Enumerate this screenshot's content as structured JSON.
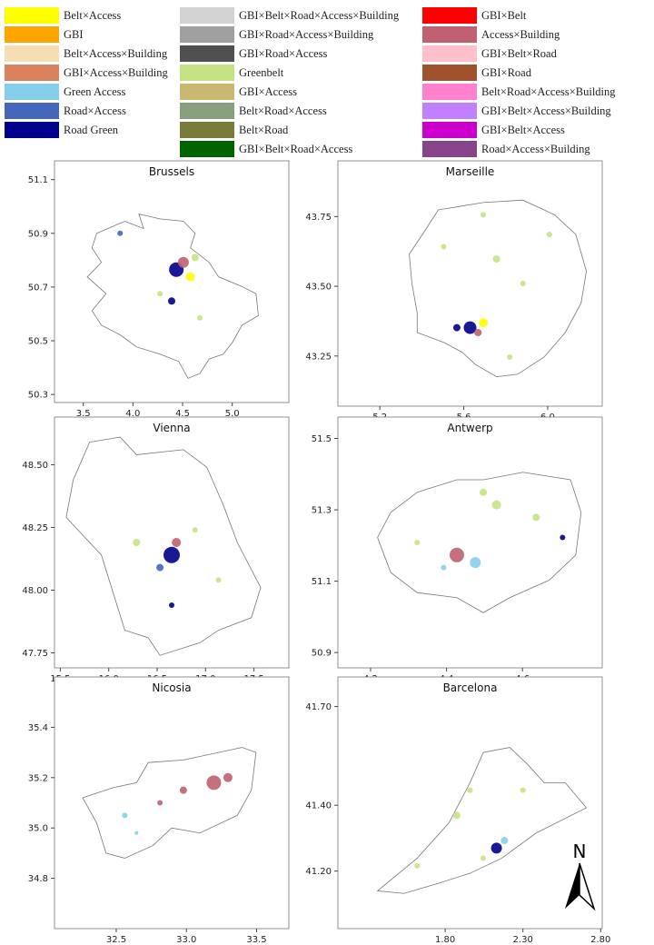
{
  "legend": [
    {
      "name": "Belt×Access",
      "color": "#ffff00"
    },
    {
      "name": "GBI",
      "color": "#ffa500"
    },
    {
      "name": "Belt×Access×Building",
      "color": "#f5deb3"
    },
    {
      "name": "GBI×Access×Building",
      "color": "#d9825b"
    },
    {
      "name": "Green Access",
      "color": "#87ceeb"
    },
    {
      "name": "Road×Access",
      "color": "#4466bb"
    },
    {
      "name": "Road Green",
      "color": "#00008b"
    },
    {
      "name": "GBI×Belt×Road×Access×Building",
      "color": "#d3d3d3"
    },
    {
      "name": "GBI×Road×Access×Building",
      "color": "#a0a0a0"
    },
    {
      "name": "GBI×Road×Access",
      "color": "#505050"
    },
    {
      "name": "Greenbelt",
      "color": "#c5e384"
    },
    {
      "name": "GBI×Access",
      "color": "#c8b870"
    },
    {
      "name": "Belt×Road×Access",
      "color": "#88a080"
    },
    {
      "name": "Belt×Road",
      "color": "#7a7a3a"
    },
    {
      "name": "GBI×Belt×Road×Access",
      "color": "#006400"
    },
    {
      "name": "GBI×Belt",
      "color": "#ff0000"
    },
    {
      "name": "Access×Building",
      "color": "#c06070"
    },
    {
      "name": "GBI×Belt×Road",
      "color": "#ffc0cb"
    },
    {
      "name": "GBI×Road",
      "color": "#a0522d"
    },
    {
      "name": "Belt×Road×Access×Building",
      "color": "#ff80cc"
    },
    {
      "name": "GBI×Belt×Access×Building",
      "color": "#c080ff"
    },
    {
      "name": "GBI×Belt×Access",
      "color": "#cc00cc"
    },
    {
      "name": "Road×Access×Building",
      "color": "#884488"
    }
  ],
  "panels": [
    {
      "title": "Brussels",
      "xlim": [
        3.21,
        5.57
      ],
      "ylim": [
        50.27,
        51.17
      ],
      "xticks": [
        3.5,
        {
          "value": 4,
          "label": "4.0"
        },
        4.5,
        {
          "value": 5,
          "label": "5.0"
        }
      ],
      "yticks": [
        50.3,
        50.5,
        50.7,
        50.9,
        51.1
      ]
    },
    {
      "title": "Marseille",
      "xlim": [
        5.0,
        6.26
      ],
      "ylim": [
        43.07,
        43.95
      ],
      "xticks": [
        5.2,
        5.6,
        {
          "value": 6,
          "label": "6.0"
        }
      ],
      "yticks": [
        43.25,
        {
          "value": 43.5,
          "label": "43.50"
        },
        43.75
      ]
    },
    {
      "title": "Vienna",
      "xlim": [
        15.44,
        17.86
      ],
      "ylim": [
        47.69,
        48.69
      ],
      "xticks": [
        15.5,
        {
          "value": 16,
          "label": "16.0"
        },
        16.5,
        {
          "value": 17,
          "label": "17.0"
        },
        17.5
      ],
      "yticks": [
        47.75,
        {
          "value": 48,
          "label": "48.00"
        },
        48.25,
        {
          "value": 48.5,
          "label": "48.50"
        }
      ]
    },
    {
      "title": "Antwerp",
      "xlim": [
        4.114,
        4.81
      ],
      "ylim": [
        50.857,
        51.56
      ],
      "xticks": [
        4.2,
        4.4,
        4.6
      ],
      "yticks": [
        50.9,
        51.1,
        51.3,
        51.5
      ]
    },
    {
      "title": "Nicosia",
      "xlim": [
        32.06,
        33.73
      ],
      "ylim": [
        34.6,
        35.6
      ],
      "xticks": [
        32.5,
        {
          "value": 33,
          "label": "33.0"
        },
        33.5
      ],
      "yticks": [
        34.8,
        {
          "value": 35,
          "label": "35.0"
        },
        35.2,
        35.4
      ]
    },
    {
      "title": "Barcelona",
      "xlim": [
        1.11,
        2.81
      ],
      "ylim": [
        41.025,
        41.79
      ],
      "xticks": [
        {
          "value": 1.8,
          "label": "1.80"
        },
        {
          "value": 2.3,
          "label": "2.30"
        },
        {
          "value": 2.8,
          "label": "2.80"
        }
      ],
      "yticks": [
        {
          "value": 41.2,
          "label": "41.20"
        },
        {
          "value": 41.4,
          "label": "41.40"
        },
        {
          "value": 41.7,
          "label": "41.70"
        }
      ]
    }
  ],
  "north_label": "N"
}
